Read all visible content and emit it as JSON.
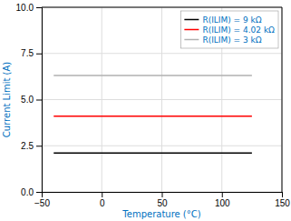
{
  "chart_data": {
    "type": "line",
    "x_label": "Temperature (°C)",
    "y_label": "Current Limit (A)",
    "x": [
      -40,
      125
    ],
    "series": [
      {
        "name": "R(ILIM) = 9 kΩ",
        "color": "#000000",
        "values": [
          2.1,
          2.1
        ]
      },
      {
        "name": "R(ILIM) = 4.02 kΩ",
        "color": "#ff0000",
        "values": [
          4.1,
          4.1
        ]
      },
      {
        "name": "R(ILIM) = 3 kΩ",
        "color": "#b0b0b0",
        "values": [
          6.3,
          6.3
        ]
      }
    ],
    "xlim": [
      -50,
      150
    ],
    "ylim": [
      0,
      10
    ],
    "xticks": [
      {
        "value": -50,
        "label": "−50"
      },
      0,
      50,
      100,
      150
    ],
    "yticks": [
      {
        "value": 0,
        "label": "0.0"
      },
      2.5,
      {
        "value": 5,
        "label": "5.0"
      },
      {
        "value": 7.5,
        "label": "7.5"
      },
      {
        "value": 10,
        "label": "10.0"
      }
    ],
    "grid": true,
    "legend": "upper right"
  }
}
